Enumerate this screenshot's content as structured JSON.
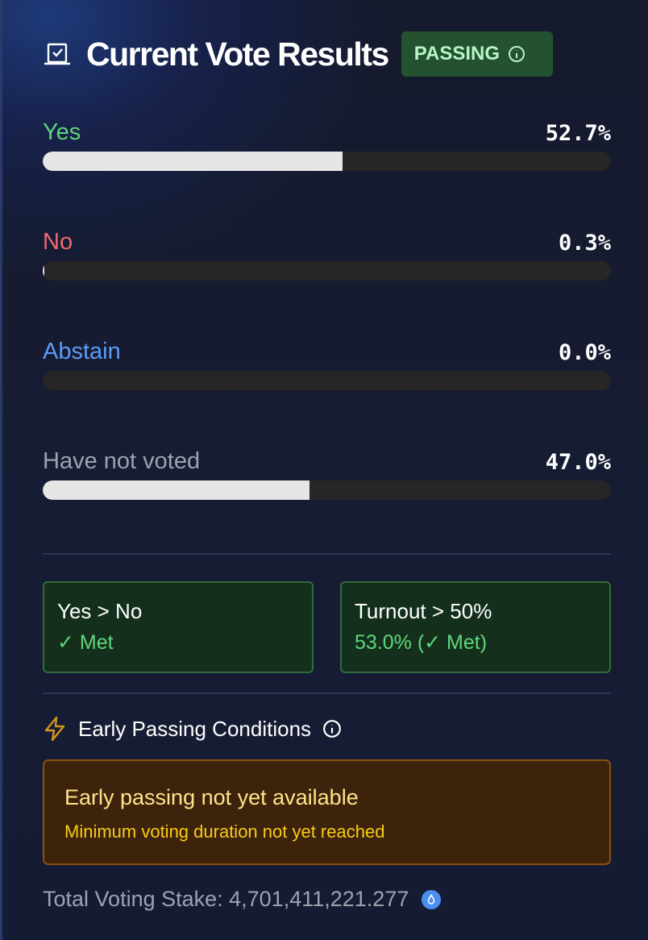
{
  "header": {
    "title": "Current Vote Results",
    "status_badge": "PASSING"
  },
  "results": [
    {
      "label": "Yes",
      "percent_text": "52.7%",
      "percent": 52.7,
      "color": "#5fd67a"
    },
    {
      "label": "No",
      "percent_text": "0.3%",
      "percent": 0.3,
      "color": "#f06b6b"
    },
    {
      "label": "Abstain",
      "percent_text": "0.0%",
      "percent": 0.0,
      "color": "#5b9cf5"
    },
    {
      "label": "Have not voted",
      "percent_text": "47.0%",
      "percent": 47.0,
      "color": "#9ca3af"
    }
  ],
  "conditions": [
    {
      "title": "Yes > No",
      "status": "✓ Met"
    },
    {
      "title": "Turnout > 50%",
      "status": "53.0% (✓ Met)"
    }
  ],
  "early": {
    "heading": "Early Passing Conditions",
    "notice_title": "Early passing not yet available",
    "notice_detail": "Minimum voting duration not yet reached"
  },
  "footer": {
    "total_stake": "Total Voting Stake: 4,701,411,221.277",
    "token_icon": "water-drop-icon"
  }
}
